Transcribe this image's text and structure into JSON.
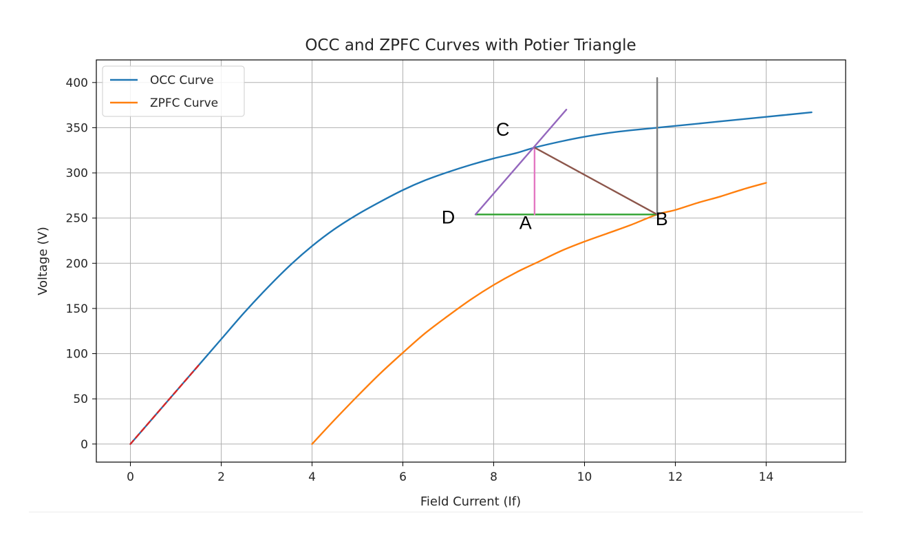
{
  "chart_data": {
    "type": "line",
    "title": "OCC and ZPFC Curves with Potier Triangle",
    "xlabel": "Field Current (If)",
    "ylabel": "Voltage (V)",
    "xlim": [
      -0.75,
      15.75
    ],
    "ylim": [
      -20,
      425
    ],
    "xticks": [
      0,
      2,
      4,
      6,
      8,
      10,
      12,
      14
    ],
    "yticks": [
      0,
      50,
      100,
      150,
      200,
      250,
      300,
      350,
      400
    ],
    "grid": true,
    "legend_position": "top-left",
    "series": [
      {
        "name": "OCC Curve",
        "color": "#1f77b4",
        "x": [
          0,
          0.5,
          1.0,
          1.5,
          2.0,
          2.5,
          3.0,
          3.5,
          4.0,
          4.5,
          5.0,
          5.5,
          6.0,
          6.5,
          7.0,
          7.5,
          8.0,
          8.5,
          8.9,
          9.5,
          10.0,
          10.5,
          11.0,
          11.6,
          12.0,
          13.0,
          14.0,
          15.0
        ],
        "y": [
          0,
          29,
          58,
          87,
          116,
          145,
          172,
          197,
          219,
          238,
          254,
          268,
          281,
          292,
          301,
          309,
          316,
          322,
          328,
          335,
          340,
          344,
          347,
          350,
          352,
          357,
          362,
          367
        ]
      },
      {
        "name": "ZPFC Curve",
        "color": "#ff7f0e",
        "x": [
          4.0,
          4.5,
          5.0,
          5.5,
          6.0,
          6.5,
          7.0,
          7.5,
          8.0,
          8.5,
          9.0,
          9.5,
          10.0,
          10.5,
          11.0,
          11.6,
          12.0,
          12.5,
          13.0,
          13.5,
          14.0
        ],
        "y": [
          0,
          27,
          53,
          78,
          101,
          123,
          142,
          160,
          176,
          190,
          202,
          214,
          224,
          233,
          242,
          254,
          259,
          267,
          274,
          282,
          289
        ]
      }
    ],
    "overlays": [
      {
        "color": "#d62728",
        "dashed": true,
        "x": [
          0,
          1.5
        ],
        "y": [
          0,
          87
        ]
      },
      {
        "color": "#2ca02c",
        "x": [
          7.6,
          11.6
        ],
        "y": [
          254,
          254
        ]
      },
      {
        "color": "#e377c2",
        "x": [
          8.9,
          8.9
        ],
        "y": [
          254,
          328
        ]
      },
      {
        "color": "#8c564b",
        "x": [
          8.9,
          11.6
        ],
        "y": [
          328,
          254
        ]
      },
      {
        "color": "#9467bd",
        "x": [
          7.6,
          9.6
        ],
        "y": [
          254,
          370
        ]
      },
      {
        "color": "#7f7f7f",
        "x": [
          11.6,
          11.6
        ],
        "y": [
          254,
          405
        ]
      }
    ],
    "annotations": [
      {
        "text": "C",
        "x": 8.2,
        "y": 341
      },
      {
        "text": "D",
        "x": 7.0,
        "y": 244
      },
      {
        "text": "A",
        "x": 8.7,
        "y": 238
      },
      {
        "text": "B",
        "x": 11.7,
        "y": 242
      }
    ]
  }
}
